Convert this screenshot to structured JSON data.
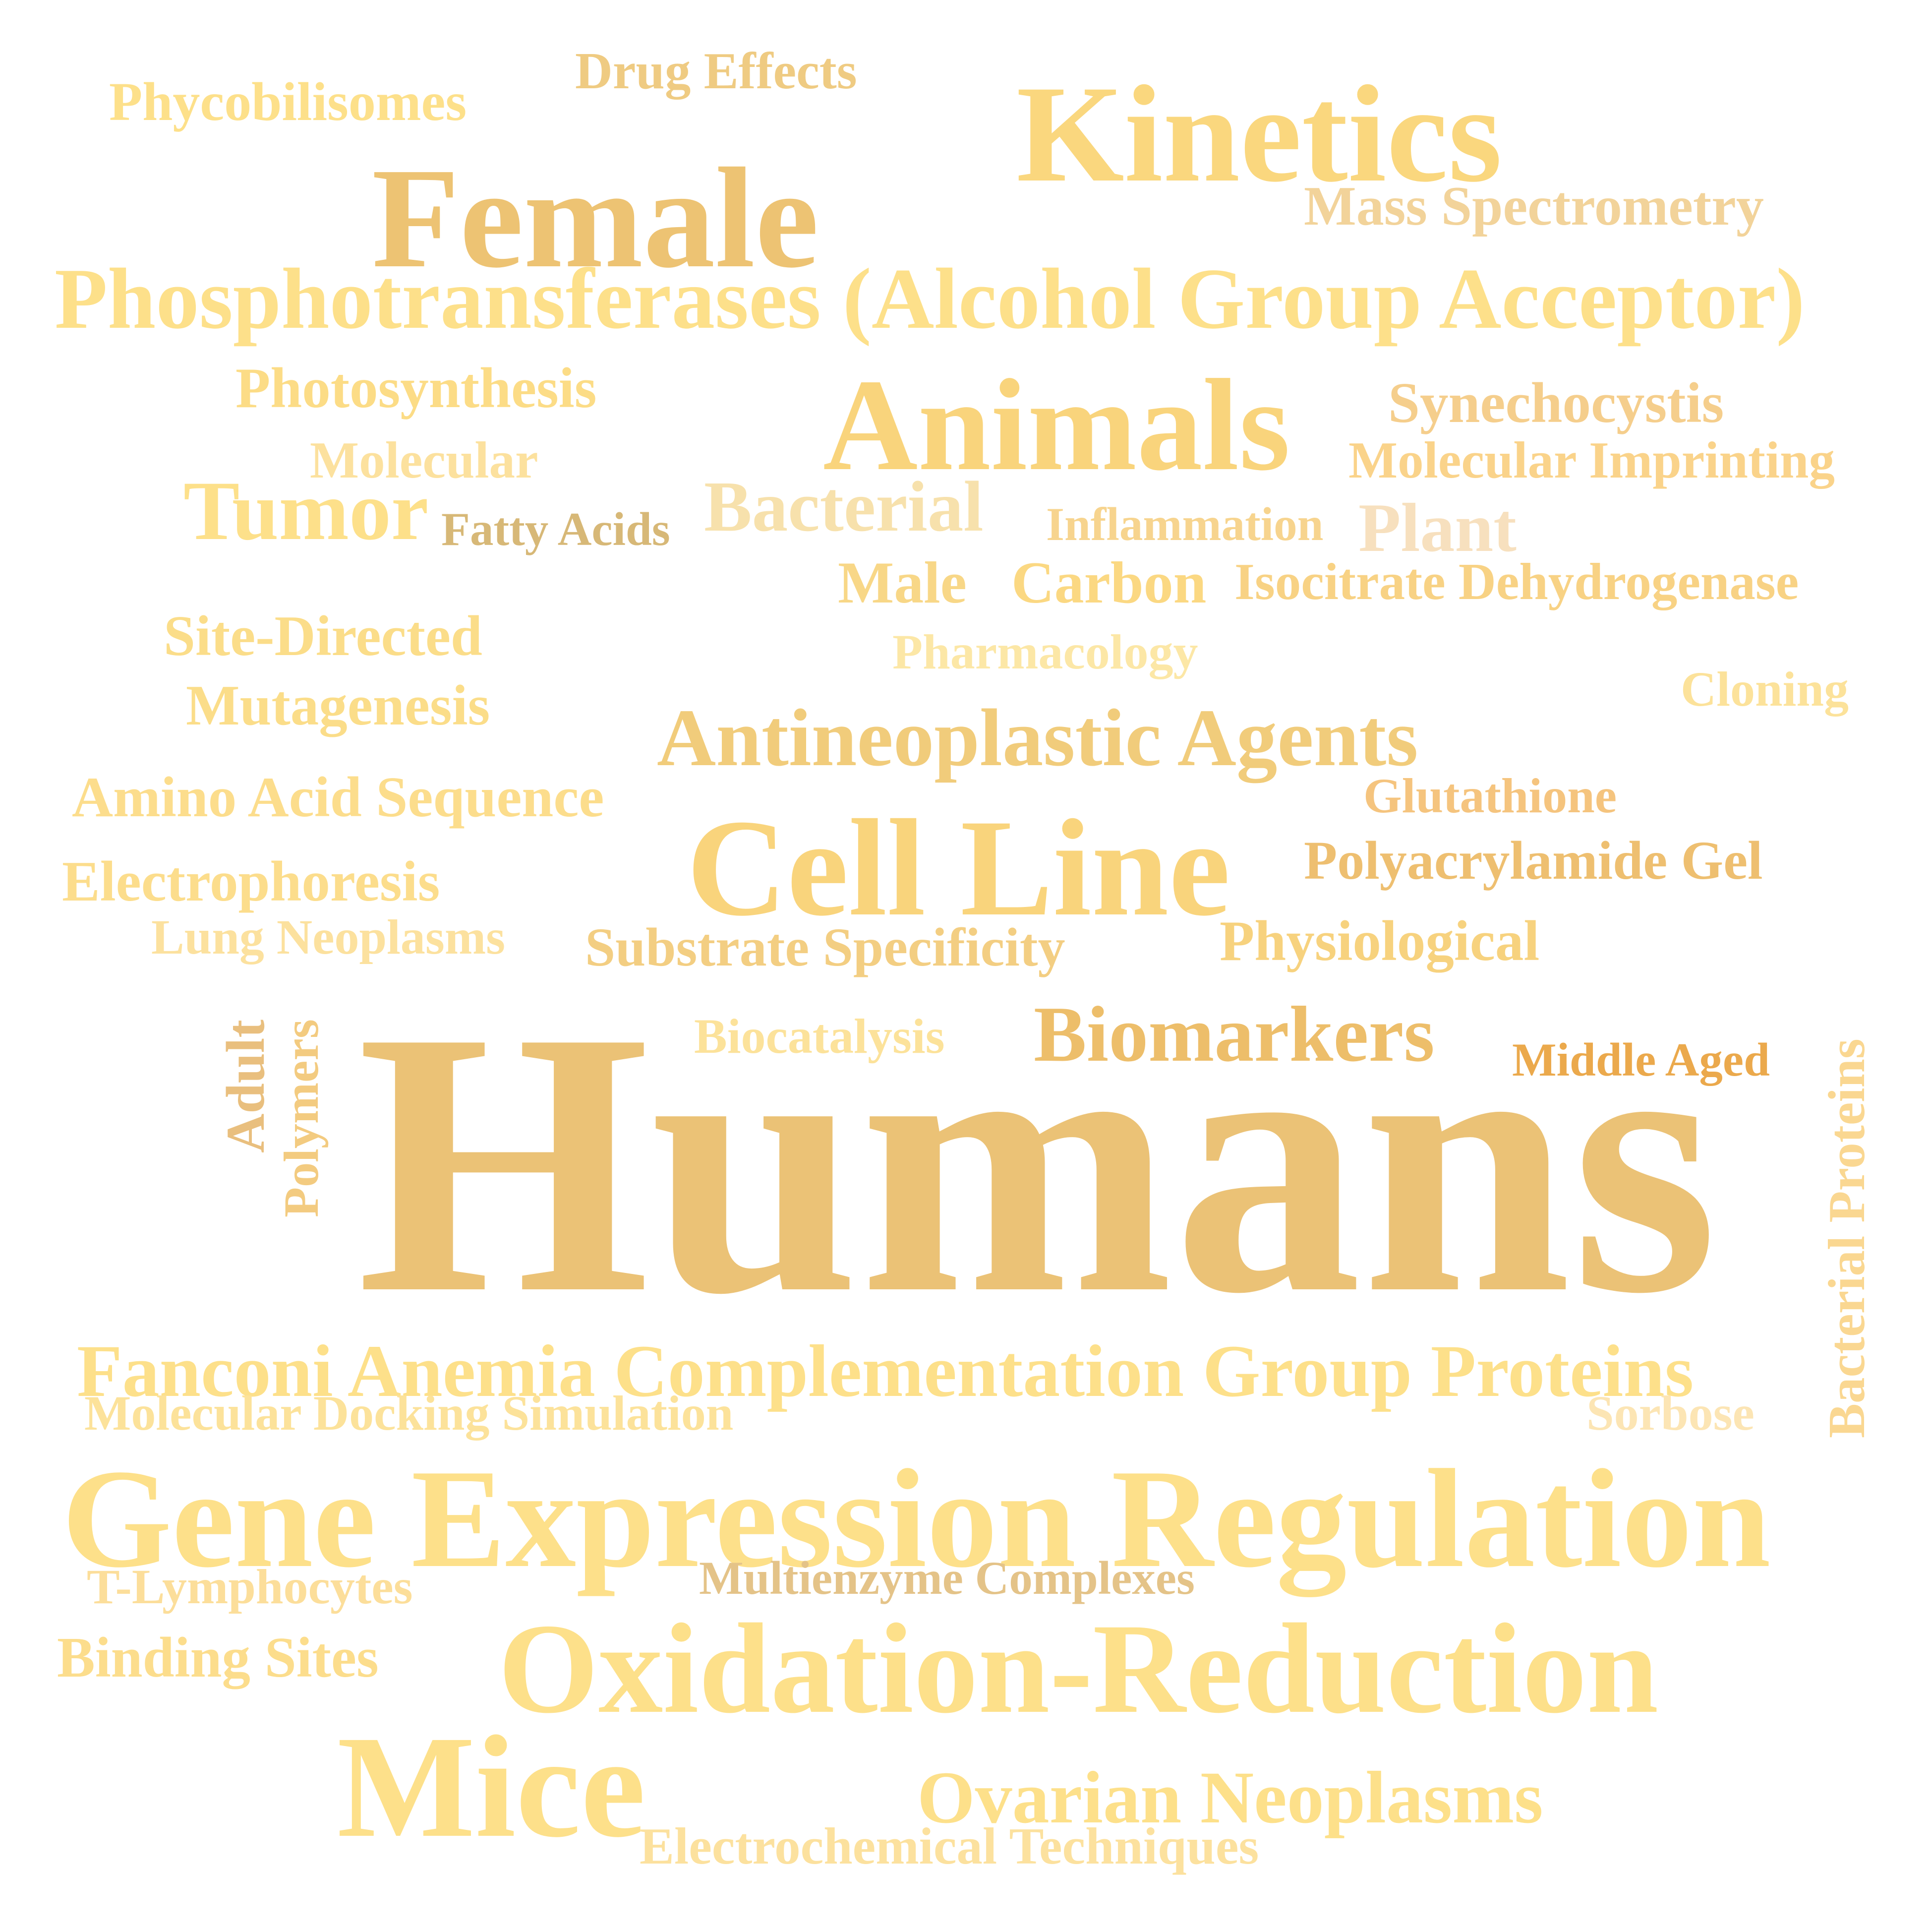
{
  "title": "",
  "words": [
    {
      "id": "phycobilisomes",
      "text": "Phycobilisomes",
      "color": "#FDE08A"
    },
    {
      "id": "drug-effects",
      "text": "Drug Effects",
      "color": "#EFCB82"
    },
    {
      "id": "kinetics",
      "text": "Kinetics",
      "color": "#FAD77E"
    },
    {
      "id": "female",
      "text": "Female",
      "color": "#EDC373"
    },
    {
      "id": "mass-spectrometry",
      "text": "Mass Spectrometry",
      "color": "#F2D39A"
    },
    {
      "id": "phosphotransferases",
      "text": "Phosphotransferases (Alcohol Group Acceptor)",
      "color": "#FDE08A"
    },
    {
      "id": "photosynthesis",
      "text": "Photosynthesis",
      "color": "#FCDC86"
    },
    {
      "id": "animals",
      "text": "Animals",
      "color": "#F9D47C"
    },
    {
      "id": "synechocystis",
      "text": "Synechocystis",
      "color": "#F5CE8C"
    },
    {
      "id": "molecular",
      "text": "Molecular",
      "color": "#FCE19E"
    },
    {
      "id": "molecular-imprinting",
      "text": "Molecular Imprinting",
      "color": "#FAD38A"
    },
    {
      "id": "tumor",
      "text": "Tumor",
      "color": "#FDE08A"
    },
    {
      "id": "fatty-acids",
      "text": "Fatty Acids",
      "color": "#D7B877"
    },
    {
      "id": "bacterial",
      "text": "Bacterial",
      "color": "#F7E1AC"
    },
    {
      "id": "inflammation",
      "text": "Inflammation",
      "color": "#F7D48E"
    },
    {
      "id": "plant",
      "text": "Plant",
      "color": "#F7E0BE"
    },
    {
      "id": "male",
      "text": "Male",
      "color": "#F8D787"
    },
    {
      "id": "carbon",
      "text": "Carbon",
      "color": "#FBD882"
    },
    {
      "id": "isocitrate-dehydrogenase",
      "text": "Isocitrate Dehydrogenase",
      "color": "#F8D284"
    },
    {
      "id": "site-directed",
      "text": "Site-Directed",
      "color": "#FBDD89"
    },
    {
      "id": "pharmacology",
      "text": "Pharmacology",
      "color": "#FCE7A6"
    },
    {
      "id": "mutagenesis",
      "text": "Mutagenesis",
      "color": "#FBDD89"
    },
    {
      "id": "cloning",
      "text": "Cloning",
      "color": "#FCE29A"
    },
    {
      "id": "antineoplastic-agents",
      "text": "Antineoplastic Agents",
      "color": "#F1CC7B"
    },
    {
      "id": "amino-acid-sequence",
      "text": "Amino Acid Sequence",
      "color": "#FCDD8C"
    },
    {
      "id": "glutathione",
      "text": "Glutathione",
      "color": "#F5C47E"
    },
    {
      "id": "cell-line",
      "text": "Cell Line",
      "color": "#F9D47C"
    },
    {
      "id": "electrophoresis",
      "text": "Electrophoresis",
      "color": "#FCDD8C"
    },
    {
      "id": "polyacrylamide-gel",
      "text": "Polyacrylamide Gel",
      "color": "#EEBF70"
    },
    {
      "id": "lung-neoplasms",
      "text": "Lung Neoplasms",
      "color": "#FCE19E"
    },
    {
      "id": "substrate-specificity",
      "text": "Substrate Specificity",
      "color": "#F3CE82"
    },
    {
      "id": "physiological",
      "text": "Physiological",
      "color": "#F7D27E"
    },
    {
      "id": "adult",
      "text": "Adult",
      "color": "#E9BF7E"
    },
    {
      "id": "polymers",
      "text": "Polymers",
      "color": "#F3CB80"
    },
    {
      "id": "biocatalysis",
      "text": "Biocatalysis",
      "color": "#FCE29A"
    },
    {
      "id": "biomarkers",
      "text": "Biomarkers",
      "color": "#EDBE6A"
    },
    {
      "id": "middle-aged",
      "text": "Middle Aged",
      "color": "#EBA94C"
    },
    {
      "id": "bacterial-proteins",
      "text": "Bacterial Proteins",
      "color": "#FAD791"
    },
    {
      "id": "humans",
      "text": "Humans",
      "color": "#EBC276"
    },
    {
      "id": "fanconi",
      "text": "Fanconi Anemia Complementation Group Proteins",
      "color": "#FDE08A"
    },
    {
      "id": "molecular-docking",
      "text": "Molecular Docking Simulation",
      "color": "#FCE29A"
    },
    {
      "id": "sorbose",
      "text": "Sorbose",
      "color": "#FCE5B4"
    },
    {
      "id": "gene-expression",
      "text": "Gene Expression Regulation",
      "color": "#FDE08A"
    },
    {
      "id": "t-lymphocytes",
      "text": "T-Lymphocytes",
      "color": "#FCDE9A"
    },
    {
      "id": "multienzyme",
      "text": "Multienzyme Complexes",
      "color": "#E4C388"
    },
    {
      "id": "binding-sites",
      "text": "Binding Sites",
      "color": "#FCDD8C"
    },
    {
      "id": "oxidation-reduction",
      "text": "Oxidation-Reduction",
      "color": "#FDE08A"
    },
    {
      "id": "mice",
      "text": "Mice",
      "color": "#FDE08A"
    },
    {
      "id": "ovarian-neoplasms",
      "text": "Ovarian Neoplasms",
      "color": "#FDE08A"
    },
    {
      "id": "electrochemical",
      "text": "Electrochemical Techniques",
      "color": "#FCE19E"
    }
  ]
}
